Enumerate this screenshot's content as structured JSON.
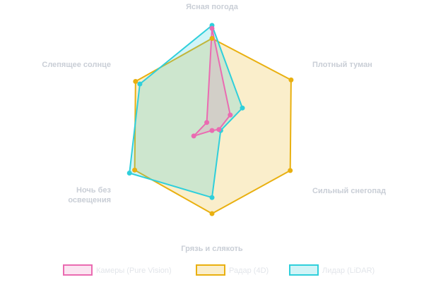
{
  "chart_data": {
    "type": "radar",
    "axes": [
      {
        "label": "Ясная погода",
        "lines": [
          "Ясная погода"
        ]
      },
      {
        "label": "Плотный туман",
        "lines": [
          "Плотный туман"
        ]
      },
      {
        "label": "Сильный снегопад",
        "lines": [
          "Сильный снегопад"
        ]
      },
      {
        "label": "Грязь и слякоть",
        "lines": [
          "Грязь и слякоть"
        ]
      },
      {
        "label": "Ночь без освещения",
        "lines": [
          "Ночь без",
          "освещения"
        ]
      },
      {
        "label": "Слепящее солнце",
        "lines": [
          "Слепящее солнце"
        ]
      }
    ],
    "rmax": 100,
    "grid": false,
    "legend_position": "bottom",
    "series": [
      {
        "name": "Камеры (Pure Vision)",
        "values": [
          97,
          21,
          8,
          5,
          21,
          6
        ],
        "stroke": "#ea6bb1",
        "fill": "rgba(234,107,177,0.18)"
      },
      {
        "name": "Радар (4D)",
        "values": [
          87,
          91,
          90,
          88,
          89,
          88
        ],
        "stroke": "#e9b010",
        "fill": "rgba(233,176,16,0.22)"
      },
      {
        "name": "Лидар (LiDAR)",
        "values": [
          100,
          35,
          10,
          72,
          95,
          83
        ],
        "stroke": "#2fcfdb",
        "fill": "rgba(47,207,219,0.22)"
      }
    ]
  }
}
